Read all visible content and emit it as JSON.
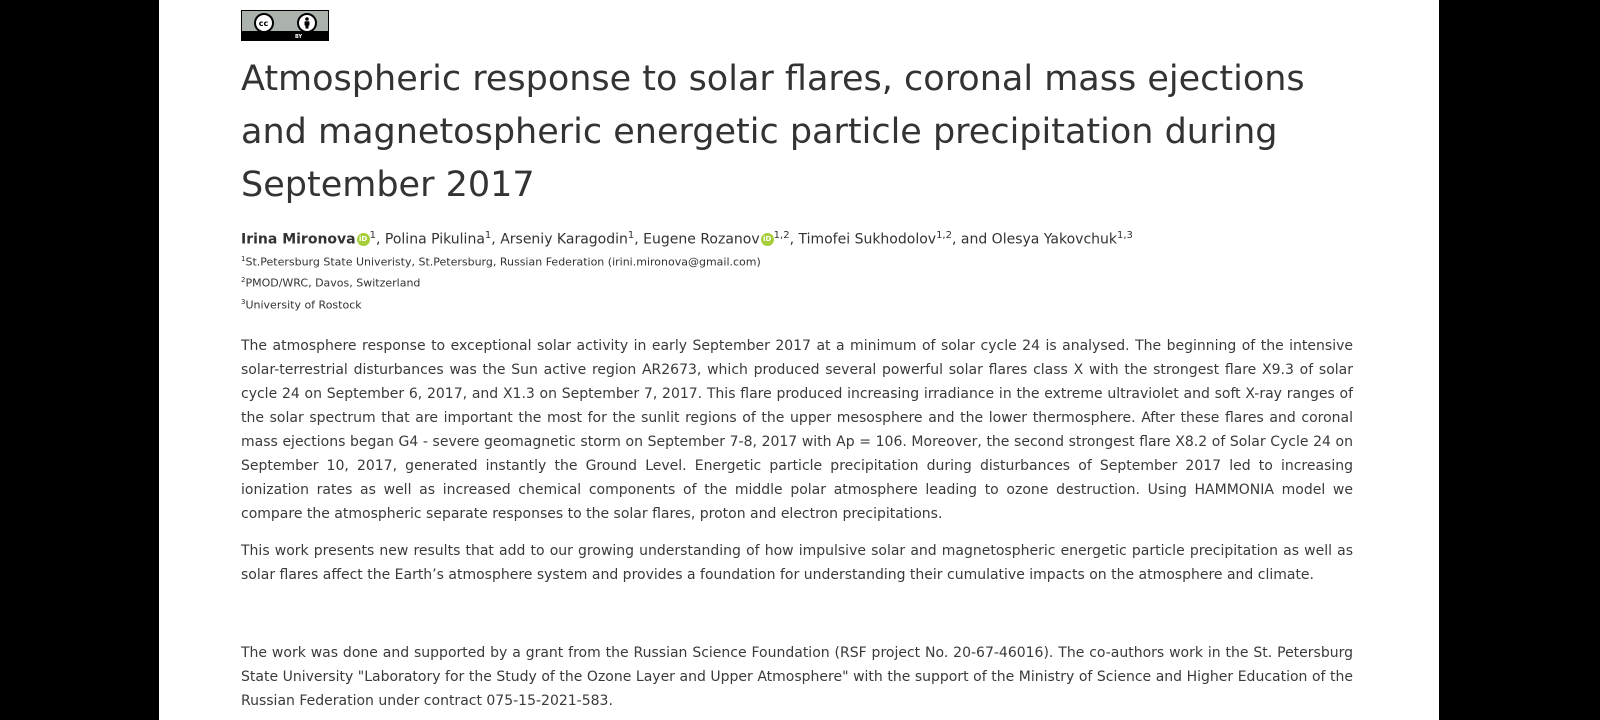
{
  "license": {
    "badge": "CC BY",
    "sub_label": "BY"
  },
  "title": "Atmospheric response to solar flares, coronal mass ejections and magnetospheric energetic particle precipitation during September 2017",
  "authors": [
    {
      "name": "Irina Mironova",
      "sup": "1",
      "orcid": true,
      "sep": ", "
    },
    {
      "name": "Polina Pikulina",
      "sup": "1",
      "orcid": false,
      "sep": ", "
    },
    {
      "name": "Arseniy Karagodin",
      "sup": "1",
      "orcid": false,
      "sep": ", "
    },
    {
      "name": "Eugene Rozanov",
      "sup": "1,2",
      "orcid": true,
      "sep": ", "
    },
    {
      "name": "Timofei Sukhodolov",
      "sup": "1,2",
      "orcid": false,
      "sep": ", and "
    },
    {
      "name": "Olesya Yakovchuk",
      "sup": "1,3",
      "orcid": false,
      "sep": ""
    }
  ],
  "affiliations": [
    {
      "sup": "1",
      "text": "St.Petersburg State Univeristy, St.Petersburg, Russian Federation (irini.mironova@gmail.com)"
    },
    {
      "sup": "2",
      "text": "PMOD/WRC, Davos, Switzerland"
    },
    {
      "sup": "3",
      "text": "University of Rostock"
    }
  ],
  "paragraphs": [
    "The atmosphere response to exceptional solar activity in early September 2017 at a minimum of solar cycle 24 is analysed. The beginning of the intensive solar-terrestrial disturbances was the Sun active region AR2673, which produced several powerful solar flares class X with the strongest flare X9.3 of solar cycle 24 on September 6, 2017, and X1.3 on September 7, 2017. This flare produced increasing irradiance in the extreme ultraviolet and soft X-ray ranges of the solar spectrum that are important the most for the sunlit regions of the upper mesosphere and the lower thermosphere. After these flares and coronal mass ejections began G4 - severe geomagnetic storm on September 7-8, 2017 with Ap = 106. Moreover, the second strongest flare X8.2 of Solar Cycle 24 on September 10, 2017, generated instantly the Ground Level. Energetic particle precipitation during disturbances of September 2017 led to increasing ionization rates as well as increased chemical components of the middle polar atmosphere leading to ozone destruction. Using HAMMONIA model we compare the atmospheric separate responses to the solar flares, proton and electron precipitations.",
    "This work presents new results that add to our growing understanding of how impulsive solar and magnetospheric energetic particle precipitation as well as solar flares affect the Earth’s atmosphere system and provides a foundation for understanding their cumulative impacts on the atmosphere and climate.",
    "The work was done and supported by a grant from the Russian Science Foundation (RSF project No. 20-67-46016). The co-authors work in the St. Petersburg State University \"Laboratory for the Study of the Ozone Layer and Upper Atmosphere\" with the support of the Ministry of Science and Higher Education of the Russian Federation under contract 075-15-2021-583."
  ]
}
